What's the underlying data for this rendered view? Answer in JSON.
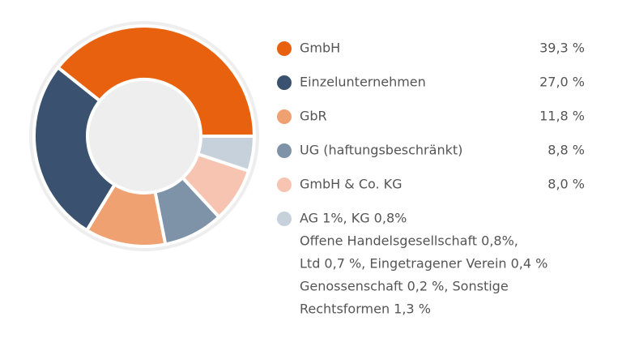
{
  "chart_data": {
    "type": "pie",
    "donut": true,
    "categories": [
      "GmbH",
      "Einzelunternehmen",
      "GbR",
      "UG (haftungsbeschränkt)",
      "GmbH & Co. KG",
      "AG 1%,  KG 0,8%"
    ],
    "values": [
      39.3,
      27.0,
      11.8,
      8.8,
      8.0,
      5.1
    ],
    "value_labels": [
      "39,3 %",
      "27,0 %",
      "11,8 %",
      "8,8 %",
      "8,0 %",
      null
    ],
    "colors": [
      "#e8610f",
      "#3b5170",
      "#f0a172",
      "#7e93a8",
      "#f6c4b1",
      "#c6d1db"
    ],
    "notes": [
      "Offene Handelsgesellschaft 0,8%,",
      "Ltd 0,7 %, Eingetragener Verein 0,4 %",
      "Genossenschaft 0,2 %, Sonstige",
      "Rechtsformen 1,3 %"
    ]
  }
}
